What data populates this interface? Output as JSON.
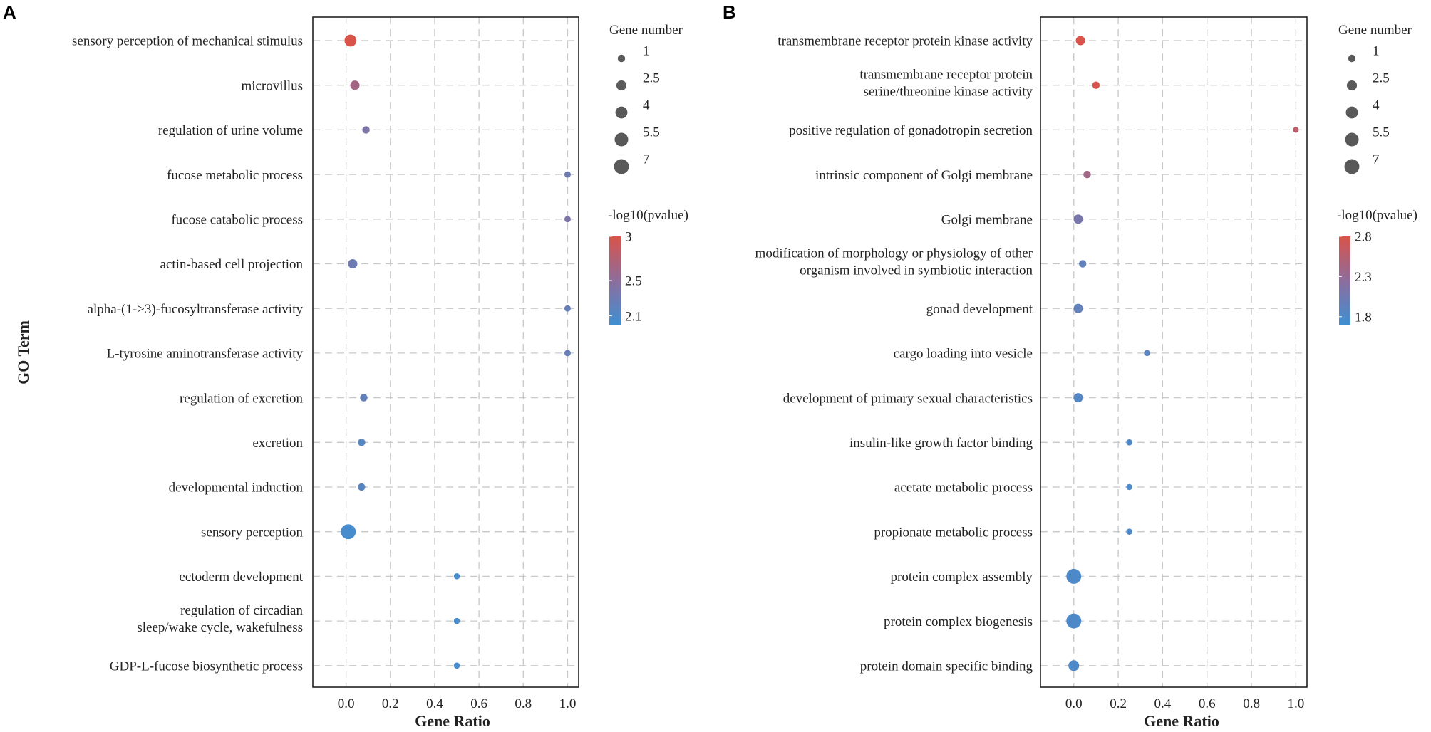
{
  "figure": {
    "y_axis_title": "GO Term"
  },
  "legend_titles": {
    "size": "Gene number",
    "color": "-log10(pvalue)"
  },
  "chart_data": [
    {
      "panel": "A",
      "type": "scatter",
      "xlabel": "Gene Ratio",
      "ylabel": "GO Term",
      "xlim": [
        -0.15,
        1.05
      ],
      "xticks": [
        "0.0",
        "0.2",
        "0.4",
        "0.6",
        "0.8",
        "1.0"
      ],
      "grid": true,
      "terms": [
        {
          "term": "sensory perception of mechanical stimulus",
          "gene_ratio": 0.02,
          "gene_number": 4,
          "neg_log10_p": 3.0
        },
        {
          "term": "microvillus",
          "gene_ratio": 0.04,
          "gene_number": 2,
          "neg_log10_p": 2.65
        },
        {
          "term": "regulation of urine volume",
          "gene_ratio": 0.09,
          "gene_number": 1,
          "neg_log10_p": 2.4
        },
        {
          "term": "fucose metabolic process",
          "gene_ratio": 1.0,
          "gene_number": 0.6,
          "neg_log10_p": 2.3
        },
        {
          "term": "fucose catabolic process",
          "gene_ratio": 1.0,
          "gene_number": 0.6,
          "neg_log10_p": 2.4
        },
        {
          "term": "actin-based cell projection",
          "gene_ratio": 0.03,
          "gene_number": 2,
          "neg_log10_p": 2.3
        },
        {
          "term": "alpha-(1->3)-fucosyltransferase activity",
          "gene_ratio": 1.0,
          "gene_number": 0.6,
          "neg_log10_p": 2.25
        },
        {
          "term": "L-tyrosine aminotransferase activity",
          "gene_ratio": 1.0,
          "gene_number": 0.6,
          "neg_log10_p": 2.25
        },
        {
          "term": "regulation of excretion",
          "gene_ratio": 0.08,
          "gene_number": 1,
          "neg_log10_p": 2.22
        },
        {
          "term": "excretion",
          "gene_ratio": 0.07,
          "gene_number": 1,
          "neg_log10_p": 2.15
        },
        {
          "term": "developmental induction",
          "gene_ratio": 0.07,
          "gene_number": 1,
          "neg_log10_p": 2.15
        },
        {
          "term": "sensory perception",
          "gene_ratio": 0.01,
          "gene_number": 7,
          "neg_log10_p": 2.05
        },
        {
          "term": "ectoderm development",
          "gene_ratio": 0.5,
          "gene_number": 0.5,
          "neg_log10_p": 2.05
        },
        {
          "term": "regulation of circadian\nsleep/wake cycle, wakefulness",
          "gene_ratio": 0.5,
          "gene_number": 0.5,
          "neg_log10_p": 2.05
        },
        {
          "term": "GDP-L-fucose biosynthetic process",
          "gene_ratio": 0.5,
          "gene_number": 0.5,
          "neg_log10_p": 2.05
        }
      ],
      "size_legend": {
        "values": [
          1,
          2.5,
          4,
          5.5,
          7
        ],
        "labels": [
          "1",
          "2.5",
          "4",
          "5.5",
          "7"
        ]
      },
      "color_legend": {
        "min": 2.0,
        "max": 3.0,
        "ticks": [
          3,
          2.5,
          2.1
        ],
        "tick_labels": [
          "3",
          "2.5",
          "2.1"
        ],
        "low_color": "#3f8fd2",
        "high_color": "#d9534a"
      }
    },
    {
      "panel": "B",
      "type": "scatter",
      "xlabel": "Gene Ratio",
      "ylabel": "",
      "xlim": [
        -0.15,
        1.05
      ],
      "xticks": [
        "0.0",
        "0.2",
        "0.4",
        "0.6",
        "0.8",
        "1.0"
      ],
      "grid": true,
      "terms": [
        {
          "term": "transmembrane receptor protein kinase activity",
          "gene_ratio": 0.03,
          "gene_number": 2,
          "neg_log10_p": 2.8
        },
        {
          "term": "transmembrane receptor protein\nserine/threonine kinase activity",
          "gene_ratio": 0.1,
          "gene_number": 1,
          "neg_log10_p": 2.78
        },
        {
          "term": "positive regulation of gonadotropin secretion",
          "gene_ratio": 1.0,
          "gene_number": 0.4,
          "neg_log10_p": 2.6
        },
        {
          "term": "intrinsic component of Golgi membrane",
          "gene_ratio": 0.06,
          "gene_number": 1,
          "neg_log10_p": 2.4
        },
        {
          "term": "Golgi membrane",
          "gene_ratio": 0.02,
          "gene_number": 2,
          "neg_log10_p": 2.1
        },
        {
          "term": "modification of morphology or physiology of other\norganism involved in symbiotic interaction",
          "gene_ratio": 0.04,
          "gene_number": 1,
          "neg_log10_p": 1.95
        },
        {
          "term": "gonad development",
          "gene_ratio": 0.02,
          "gene_number": 2,
          "neg_log10_p": 1.95
        },
        {
          "term": "cargo loading into vesicle",
          "gene_ratio": 0.33,
          "gene_number": 0.5,
          "neg_log10_p": 1.9
        },
        {
          "term": "development of primary sexual characteristics",
          "gene_ratio": 0.02,
          "gene_number": 2,
          "neg_log10_p": 1.85
        },
        {
          "term": "insulin-like growth factor binding",
          "gene_ratio": 0.25,
          "gene_number": 0.5,
          "neg_log10_p": 1.8
        },
        {
          "term": "acetate metabolic process",
          "gene_ratio": 0.25,
          "gene_number": 0.5,
          "neg_log10_p": 1.8
        },
        {
          "term": "propionate metabolic process",
          "gene_ratio": 0.25,
          "gene_number": 0.5,
          "neg_log10_p": 1.8
        },
        {
          "term": "protein complex assembly",
          "gene_ratio": 0.0,
          "gene_number": 7,
          "neg_log10_p": 1.8
        },
        {
          "term": "protein complex biogenesis",
          "gene_ratio": 0.0,
          "gene_number": 7,
          "neg_log10_p": 1.8
        },
        {
          "term": "protein domain specific binding",
          "gene_ratio": 0.0,
          "gene_number": 3,
          "neg_log10_p": 1.8
        }
      ],
      "size_legend": {
        "values": [
          1,
          2.5,
          4,
          5.5,
          7
        ],
        "labels": [
          "1",
          "2.5",
          "4",
          "5.5",
          "7"
        ]
      },
      "color_legend": {
        "min": 1.7,
        "max": 2.8,
        "ticks": [
          2.8,
          2.3,
          1.8
        ],
        "tick_labels": [
          "2.8",
          "2.3",
          "1.8"
        ],
        "low_color": "#3f8fd2",
        "high_color": "#d9534a"
      }
    }
  ]
}
